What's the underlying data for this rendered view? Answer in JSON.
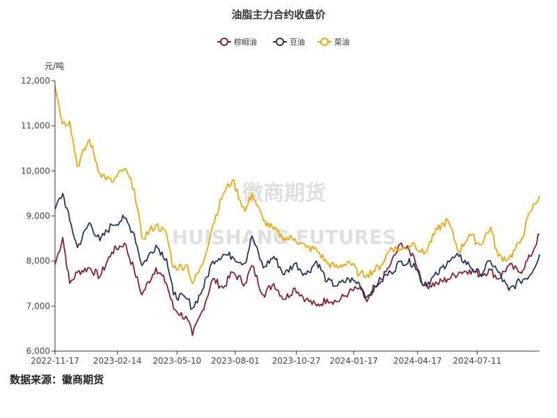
{
  "chart_data": {
    "type": "line",
    "title": "油脂主力合约收盘价",
    "ylabel": "元/吨",
    "ylim": [
      6000,
      12000
    ],
    "yticks": [
      6000,
      7000,
      8000,
      9000,
      10000,
      11000,
      12000
    ],
    "ytick_labels": [
      "6,000",
      "7,000",
      "8,000",
      "9,000",
      "10,000",
      "11,000",
      "12,000"
    ],
    "xticks": [
      "2022-11-17",
      "2023-02-14",
      "2023-05-10",
      "2023-08-01",
      "2023-10-27",
      "2024-01-17",
      "2024-04-17",
      "2024-07-11"
    ],
    "x_start": "2022-11-17",
    "x_end": "2024-10-08",
    "legend_position": "top-center",
    "grid": false,
    "watermark": [
      "徽商期货",
      "HUISHANG FUTURES"
    ],
    "series": [
      {
        "name": "棕榈油",
        "color": "#8b1a2e",
        "points": [
          [
            "2022-11-17",
            7920
          ],
          [
            "2022-11-28",
            8520
          ],
          [
            "2022-12-08",
            7500
          ],
          [
            "2022-12-19",
            7750
          ],
          [
            "2023-01-05",
            7850
          ],
          [
            "2023-01-20",
            7650
          ],
          [
            "2023-02-06",
            8200
          ],
          [
            "2023-02-24",
            8400
          ],
          [
            "2023-03-10",
            7800
          ],
          [
            "2023-03-21",
            7250
          ],
          [
            "2023-04-10",
            7850
          ],
          [
            "2023-04-25",
            7500
          ],
          [
            "2023-05-05",
            6950
          ],
          [
            "2023-05-25",
            6700
          ],
          [
            "2023-06-01",
            6350
          ],
          [
            "2023-06-15",
            6900
          ],
          [
            "2023-06-30",
            7600
          ],
          [
            "2023-07-15",
            7400
          ],
          [
            "2023-07-28",
            7750
          ],
          [
            "2023-08-15",
            7500
          ],
          [
            "2023-08-25",
            7900
          ],
          [
            "2023-09-10",
            7250
          ],
          [
            "2023-09-25",
            7500
          ],
          [
            "2023-10-10",
            7150
          ],
          [
            "2023-10-25",
            7400
          ],
          [
            "2023-11-10",
            7150
          ],
          [
            "2023-11-25",
            7000
          ],
          [
            "2023-12-10",
            7150
          ],
          [
            "2023-12-25",
            7100
          ],
          [
            "2024-01-10",
            7300
          ],
          [
            "2024-01-25",
            7400
          ],
          [
            "2024-02-05",
            7100
          ],
          [
            "2024-02-25",
            7550
          ],
          [
            "2024-03-10",
            7950
          ],
          [
            "2024-03-25",
            8400
          ],
          [
            "2024-04-12",
            8100
          ],
          [
            "2024-04-26",
            7450
          ],
          [
            "2024-05-15",
            7500
          ],
          [
            "2024-05-30",
            7600
          ],
          [
            "2024-06-15",
            7750
          ],
          [
            "2024-06-30",
            7800
          ],
          [
            "2024-07-15",
            7700
          ],
          [
            "2024-07-30",
            7800
          ],
          [
            "2024-08-10",
            7600
          ],
          [
            "2024-08-25",
            7900
          ],
          [
            "2024-09-10",
            7750
          ],
          [
            "2024-09-25",
            8100
          ],
          [
            "2024-10-08",
            8600
          ]
        ]
      },
      {
        "name": "豆油",
        "color": "#1f3561",
        "points": [
          [
            "2022-11-17",
            9150
          ],
          [
            "2022-11-28",
            9500
          ],
          [
            "2022-12-08",
            8900
          ],
          [
            "2022-12-19",
            8300
          ],
          [
            "2023-01-05",
            8850
          ],
          [
            "2023-01-20",
            8450
          ],
          [
            "2023-02-06",
            8800
          ],
          [
            "2023-02-24",
            8950
          ],
          [
            "2023-03-10",
            8600
          ],
          [
            "2023-03-21",
            7900
          ],
          [
            "2023-04-10",
            8350
          ],
          [
            "2023-04-25",
            8050
          ],
          [
            "2023-05-05",
            7250
          ],
          [
            "2023-05-25",
            7150
          ],
          [
            "2023-06-01",
            6950
          ],
          [
            "2023-06-15",
            7350
          ],
          [
            "2023-06-30",
            8000
          ],
          [
            "2023-07-15",
            8150
          ],
          [
            "2023-07-28",
            8100
          ],
          [
            "2023-08-15",
            7950
          ],
          [
            "2023-08-25",
            8550
          ],
          [
            "2023-09-10",
            7850
          ],
          [
            "2023-09-25",
            8100
          ],
          [
            "2023-10-10",
            7700
          ],
          [
            "2023-10-25",
            7950
          ],
          [
            "2023-11-10",
            7700
          ],
          [
            "2023-11-25",
            8000
          ],
          [
            "2023-12-10",
            7550
          ],
          [
            "2023-12-25",
            7450
          ],
          [
            "2024-01-10",
            7600
          ],
          [
            "2024-01-25",
            7500
          ],
          [
            "2024-02-05",
            7200
          ],
          [
            "2024-02-25",
            7600
          ],
          [
            "2024-03-10",
            7750
          ],
          [
            "2024-03-25",
            8000
          ],
          [
            "2024-04-12",
            7950
          ],
          [
            "2024-04-26",
            7450
          ],
          [
            "2024-05-15",
            7700
          ],
          [
            "2024-05-30",
            8000
          ],
          [
            "2024-06-15",
            8100
          ],
          [
            "2024-06-30",
            7900
          ],
          [
            "2024-07-15",
            7700
          ],
          [
            "2024-07-30",
            8000
          ],
          [
            "2024-08-10",
            7750
          ],
          [
            "2024-08-25",
            7350
          ],
          [
            "2024-09-10",
            7550
          ],
          [
            "2024-09-25",
            7700
          ],
          [
            "2024-10-08",
            8150
          ]
        ]
      },
      {
        "name": "菜油",
        "color": "#f0a400",
        "points": [
          [
            "2022-11-17",
            11900
          ],
          [
            "2022-11-28",
            11050
          ],
          [
            "2022-12-08",
            11100
          ],
          [
            "2022-12-19",
            10100
          ],
          [
            "2023-01-05",
            10700
          ],
          [
            "2023-01-20",
            9950
          ],
          [
            "2023-02-06",
            9750
          ],
          [
            "2023-02-24",
            10050
          ],
          [
            "2023-03-10",
            9600
          ],
          [
            "2023-03-21",
            8500
          ],
          [
            "2023-04-10",
            8800
          ],
          [
            "2023-04-25",
            8600
          ],
          [
            "2023-05-05",
            7850
          ],
          [
            "2023-05-25",
            7900
          ],
          [
            "2023-06-01",
            7500
          ],
          [
            "2023-06-15",
            7900
          ],
          [
            "2023-06-30",
            8800
          ],
          [
            "2023-07-15",
            9500
          ],
          [
            "2023-07-28",
            9800
          ],
          [
            "2023-08-15",
            9100
          ],
          [
            "2023-08-25",
            9500
          ],
          [
            "2023-09-10",
            8900
          ],
          [
            "2023-09-25",
            8700
          ],
          [
            "2023-10-10",
            8500
          ],
          [
            "2023-10-25",
            8500
          ],
          [
            "2023-11-10",
            8300
          ],
          [
            "2023-11-25",
            8250
          ],
          [
            "2023-12-10",
            7950
          ],
          [
            "2023-12-25",
            7850
          ],
          [
            "2024-01-10",
            8000
          ],
          [
            "2024-01-25",
            7700
          ],
          [
            "2024-02-05",
            7700
          ],
          [
            "2024-02-25",
            7900
          ],
          [
            "2024-03-10",
            8300
          ],
          [
            "2024-03-25",
            8250
          ],
          [
            "2024-04-12",
            8400
          ],
          [
            "2024-04-26",
            8150
          ],
          [
            "2024-05-15",
            8700
          ],
          [
            "2024-05-30",
            8900
          ],
          [
            "2024-06-15",
            8200
          ],
          [
            "2024-06-30",
            8600
          ],
          [
            "2024-07-15",
            8350
          ],
          [
            "2024-07-30",
            8750
          ],
          [
            "2024-08-10",
            8100
          ],
          [
            "2024-08-25",
            8050
          ],
          [
            "2024-09-10",
            8400
          ],
          [
            "2024-09-25",
            9100
          ],
          [
            "2024-10-08",
            9450
          ]
        ]
      }
    ]
  },
  "source": "数据来源：徽商期货"
}
